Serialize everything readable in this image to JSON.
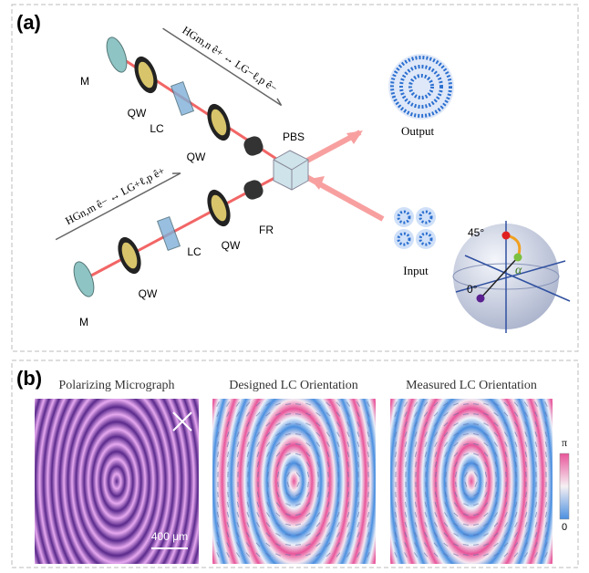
{
  "panel_a": {
    "label": "(a)",
    "components": [
      {
        "label": "M"
      },
      {
        "label": "QW"
      },
      {
        "label": "LC"
      },
      {
        "label": "QW"
      },
      {
        "label": "PBS"
      },
      {
        "label": "FR"
      },
      {
        "label": "QW"
      },
      {
        "label": "LC"
      },
      {
        "label": "QW"
      },
      {
        "label": "M"
      }
    ],
    "formulas": [
      "HGm,n ê+ ↔ LG−ℓ,p ê−",
      "HGn,m ê− ↔ LG+ℓ,p ê+"
    ],
    "output": "Output",
    "input": "Input",
    "sphere": {
      "top": "45°",
      "angle": "α",
      "bottom": "0°"
    }
  },
  "panel_b": {
    "label": "(b)",
    "titles": [
      "Polarizing Micrograph",
      "Designed LC Orientation",
      "Measured LC Orientation"
    ],
    "scale_bar": "400 μm",
    "colorbar": {
      "max": "π",
      "min": "0"
    }
  }
}
